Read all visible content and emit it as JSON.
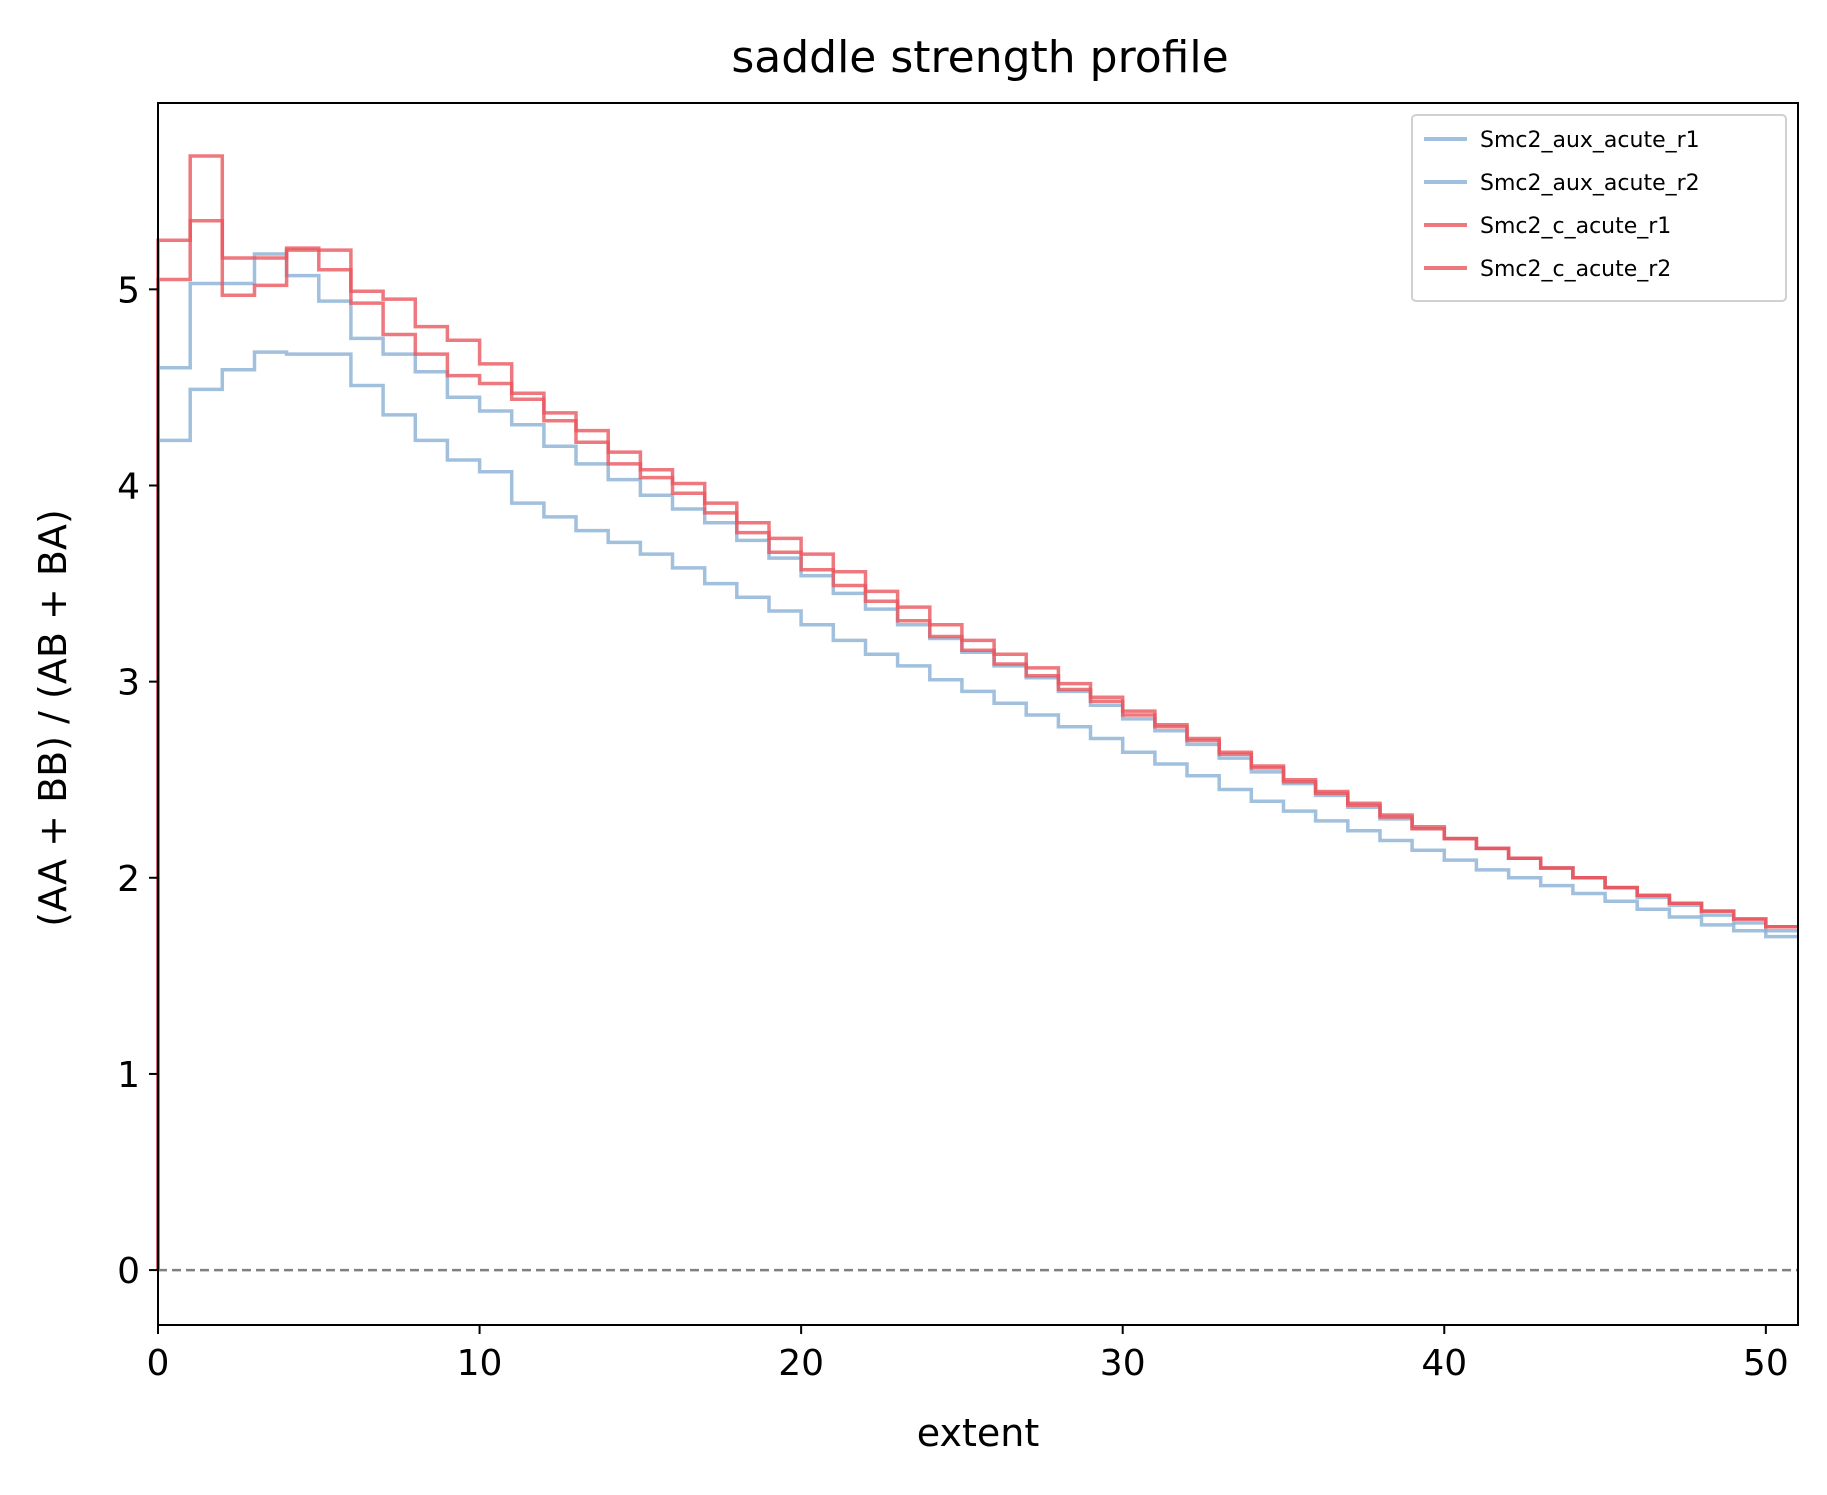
{
  "chart_data": {
    "type": "line",
    "drawstyle": "steps-post",
    "title": "saddle strength profile",
    "xlabel": "extent",
    "ylabel": "(AA + BB) / (AB + BA)",
    "xlim": [
      0,
      51
    ],
    "ylim": [
      -0.28,
      5.95
    ],
    "xticks": [
      0,
      10,
      20,
      30,
      40,
      50
    ],
    "yticks": [
      0,
      1,
      2,
      3,
      4,
      5
    ],
    "grid": false,
    "legend_position": "top-right",
    "reference_line": {
      "y": 0,
      "style": "dashed",
      "color": "#808080"
    },
    "x": [
      0,
      1,
      2,
      3,
      4,
      5,
      6,
      7,
      8,
      9,
      10,
      11,
      12,
      13,
      14,
      15,
      16,
      17,
      18,
      19,
      20,
      21,
      22,
      23,
      24,
      25,
      26,
      27,
      28,
      29,
      30,
      31,
      32,
      33,
      34,
      35,
      36,
      37,
      38,
      39,
      40,
      41,
      42,
      43,
      44,
      45,
      46,
      47,
      48,
      49,
      50,
      51
    ],
    "series": [
      {
        "name": "Smc2_aux_acute_r1",
        "color": "#8ab0d6",
        "values": [
          4.6,
          5.03,
          5.03,
          5.18,
          5.07,
          4.94,
          4.75,
          4.67,
          4.58,
          4.45,
          4.38,
          4.31,
          4.2,
          4.11,
          4.03,
          3.95,
          3.88,
          3.81,
          3.72,
          3.63,
          3.54,
          3.45,
          3.37,
          3.29,
          3.22,
          3.15,
          3.08,
          3.02,
          2.95,
          2.88,
          2.81,
          2.75,
          2.68,
          2.61,
          2.54,
          2.48,
          2.42,
          2.36,
          2.3,
          2.25,
          2.2,
          2.15,
          2.1,
          2.05,
          2.0,
          1.95,
          1.9,
          1.86,
          1.81,
          1.77,
          1.73,
          1.73
        ]
      },
      {
        "name": "Smc2_aux_acute_r2",
        "color": "#8ab0d6",
        "values": [
          4.23,
          4.49,
          4.59,
          4.68,
          4.67,
          4.67,
          4.51,
          4.36,
          4.23,
          4.13,
          4.07,
          3.91,
          3.84,
          3.77,
          3.71,
          3.65,
          3.58,
          3.5,
          3.43,
          3.36,
          3.29,
          3.21,
          3.14,
          3.08,
          3.01,
          2.95,
          2.89,
          2.83,
          2.77,
          2.71,
          2.64,
          2.58,
          2.52,
          2.45,
          2.39,
          2.34,
          2.29,
          2.24,
          2.19,
          2.14,
          2.09,
          2.04,
          2.0,
          1.96,
          1.92,
          1.88,
          1.84,
          1.8,
          1.76,
          1.73,
          1.7,
          1.7
        ]
      },
      {
        "name": "Smc2_c_acute_r1",
        "color": "#e8565e",
        "values": [
          5.05,
          5.35,
          5.16,
          5.16,
          5.2,
          5.1,
          4.93,
          4.77,
          4.67,
          4.56,
          4.52,
          4.44,
          4.33,
          4.22,
          4.11,
          4.04,
          3.96,
          3.86,
          3.76,
          3.66,
          3.57,
          3.49,
          3.41,
          3.31,
          3.23,
          3.16,
          3.09,
          3.03,
          2.96,
          2.9,
          2.83,
          2.77,
          2.7,
          2.63,
          2.56,
          2.49,
          2.43,
          2.37,
          2.31,
          2.25,
          2.2,
          2.15,
          2.1,
          2.05,
          2.0,
          1.95,
          1.91,
          1.87,
          1.83,
          1.79,
          1.75,
          1.75
        ]
      },
      {
        "name": "Smc2_c_acute_r2",
        "color": "#e8565e",
        "values": [
          5.25,
          5.68,
          4.97,
          5.02,
          5.21,
          5.2,
          4.99,
          4.95,
          4.81,
          4.74,
          4.62,
          4.47,
          4.37,
          4.28,
          4.17,
          4.08,
          4.01,
          3.91,
          3.81,
          3.73,
          3.65,
          3.56,
          3.46,
          3.38,
          3.29,
          3.21,
          3.14,
          3.07,
          2.99,
          2.92,
          2.85,
          2.78,
          2.71,
          2.64,
          2.57,
          2.5,
          2.44,
          2.38,
          2.32,
          2.26,
          2.2,
          2.15,
          2.1,
          2.05,
          2.0,
          1.95,
          1.91,
          1.87,
          1.83,
          1.79,
          1.75,
          1.75
        ]
      }
    ]
  }
}
